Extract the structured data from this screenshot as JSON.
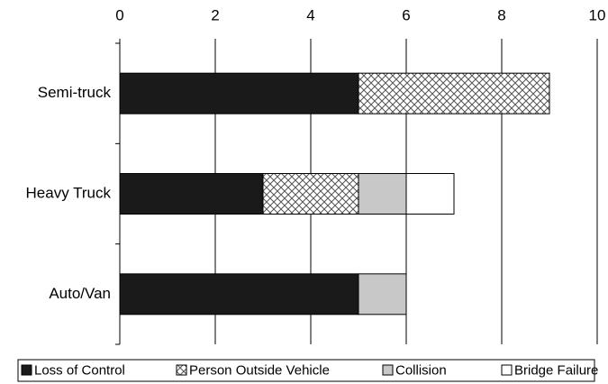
{
  "chart_data": {
    "type": "bar",
    "orientation": "horizontal",
    "stacked": true,
    "categories": [
      "Semi-truck",
      "Heavy Truck",
      "Auto/Van"
    ],
    "series": [
      {
        "name": "Loss of Control",
        "color": "#1a1a1a",
        "values": [
          5,
          3,
          5
        ]
      },
      {
        "name": "Person Outside Vehicle",
        "color": "#ffffff",
        "pattern": "crosshatch",
        "values": [
          4,
          2,
          0
        ]
      },
      {
        "name": "Collision",
        "color": "#c8c8c8",
        "values": [
          0,
          1,
          1
        ]
      },
      {
        "name": "Bridge Failure",
        "color": "#ffffff",
        "values": [
          0,
          1,
          0
        ]
      }
    ],
    "xlim": [
      0,
      10
    ],
    "xticks": [
      0,
      2,
      4,
      6,
      8,
      10
    ],
    "grid": true,
    "legend": "bottom"
  }
}
